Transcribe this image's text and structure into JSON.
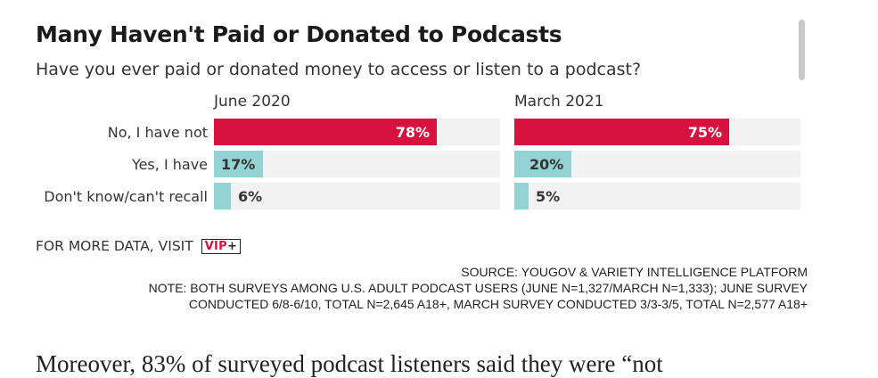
{
  "chart_data": {
    "type": "bar",
    "title": "Many Haven't Paid or Donated to Podcasts",
    "subtitle": "Have you ever paid or donated money to access or listen to a podcast?",
    "categories": [
      "No, I have not",
      "Yes, I have",
      "Don't know/can't recall"
    ],
    "series": [
      {
        "name": "June 2020",
        "values": [
          78,
          17,
          6
        ],
        "labels": [
          "78%",
          "17%",
          "6%"
        ]
      },
      {
        "name": "March 2021",
        "values": [
          75,
          20,
          5
        ],
        "labels": [
          "75%",
          "20%",
          "5%"
        ]
      }
    ],
    "ylim": [
      0,
      100
    ],
    "bar_colors": [
      "#d8123f",
      "#93d3d3",
      "#93d3d3"
    ]
  },
  "more_data": {
    "text": "FOR MORE DATA, VISIT",
    "badge": "VIP",
    "badge_plus": "+"
  },
  "notes": {
    "source": "SOURCE: YOUGOV & VARIETY INTELLIGENCE PLATFORM",
    "note_line1": "NOTE: BOTH SURVEYS AMONG U.S. ADULT PODCAST USERS (JUNE N=1,327/MARCH N=1,333); JUNE SURVEY",
    "note_line2": "CONDUCTED 6/8-6/10, TOTAL N=2,645 A18+, MARCH SURVEY CONDUCTED 3/3-3/5, TOTAL N=2,577 A18+"
  },
  "article": {
    "text": "Moreover, 83% of surveyed podcast listeners said they were “not"
  }
}
